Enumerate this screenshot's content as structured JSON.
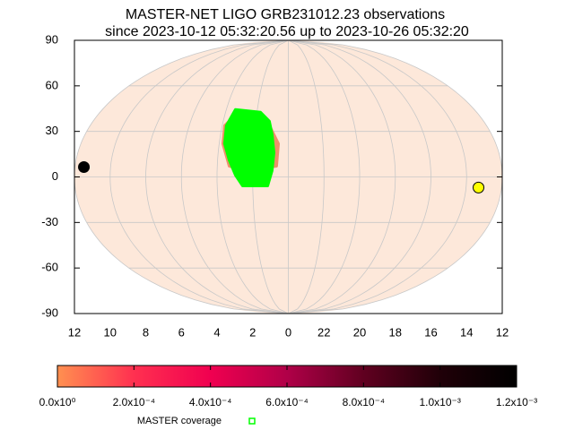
{
  "chart_data": {
    "type": "skymap",
    "title": "MASTER-NET LIGO GRB231012.23 observations",
    "subtitle": "since 2023-10-12 05:32:20.56 up to 2023-10-26 05:32:20",
    "xlim": [
      12,
      -12
    ],
    "xticks": [
      12,
      10,
      8,
      6,
      4,
      2,
      0,
      {
        "value": -2,
        "label": "22"
      },
      {
        "value": -4,
        "label": "20"
      },
      {
        "value": -6,
        "label": "18"
      },
      {
        "value": -8,
        "label": "16"
      },
      {
        "value": -10,
        "label": "14"
      },
      {
        "value": -12,
        "label": "12"
      }
    ],
    "ylim": [
      -90,
      90
    ],
    "yticks": [
      -90,
      -60,
      -30,
      0,
      30,
      60,
      90
    ],
    "grid": true,
    "sky_color": "#fde8da",
    "regions": [
      {
        "color": "#ee906a",
        "x": [
          3.86,
          3.34,
          1.14,
          0.57,
          0.66,
          2.32,
          3.33,
          3.79
        ],
        "y": [
          33.8,
          40.9,
          33.8,
          21.9,
          7.1,
          4.1,
          7.1,
          21.9
        ]
      }
    ],
    "series": [
      {
        "name": "MASTER coverage",
        "color": "#00ff00",
        "x": [
          3.42,
          1.77,
          1.16,
          0.95,
          0.82,
          0.91,
          1.16,
          2.57,
          2.97,
          3.35,
          3.69,
          3.75
        ],
        "y": [
          44.4,
          42.6,
          36.7,
          27.8,
          16,
          4.1,
          -5.9,
          -5.9,
          1.2,
          11.3,
          21.9,
          33.8
        ]
      }
    ],
    "markers": [
      {
        "x": 11.5,
        "y": 6.5,
        "color": "#000000"
      },
      {
        "x": -10.7,
        "y": -7,
        "color": "#ffff00"
      }
    ],
    "colorbar": {
      "lim": [
        0,
        0.0012
      ],
      "ticks": [
        {
          "value": 0,
          "label": "0.0x10⁰"
        },
        {
          "value": 0.0002,
          "label": "2.0x10⁻⁴"
        },
        {
          "value": 0.0004,
          "label": "4.0x10⁻⁴"
        },
        {
          "value": 0.0006,
          "label": "6.0x10⁻⁴"
        },
        {
          "value": 0.0008,
          "label": "8.0x10⁻⁴"
        },
        {
          "value": 0.001,
          "label": "1.0x10⁻³"
        },
        {
          "value": 0.0012,
          "label": "1.2x10⁻³"
        }
      ],
      "colors": [
        "#ff9050",
        "#ff3050",
        "#f00050",
        "#b00048",
        "#600020",
        "#200008",
        "#000000"
      ]
    }
  }
}
